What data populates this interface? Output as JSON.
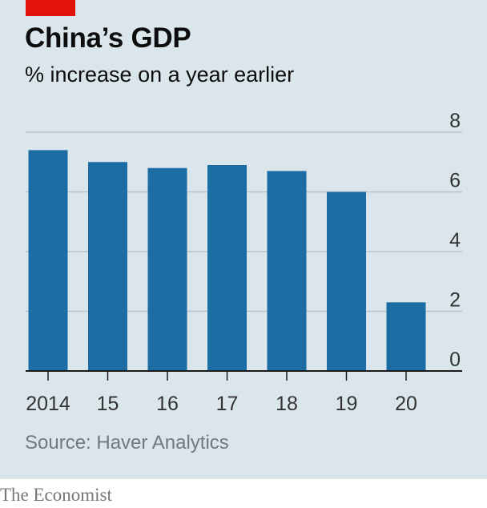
{
  "colors": {
    "background": "#dbe6ec",
    "bar": "#1b6da3",
    "accent": "#e3120b",
    "grid": "#b7c3ca"
  },
  "header": {
    "title": "China’s GDP",
    "subtitle": "% increase on a year earlier"
  },
  "footer": {
    "source": "Source: Haver Analytics",
    "brand": "The Economist"
  },
  "chart_data": {
    "type": "bar",
    "title": "China’s GDP",
    "subtitle": "% increase on a year earlier",
    "xlabel": "",
    "ylabel": "% increase on a year earlier",
    "categories": [
      "2014",
      "15",
      "16",
      "17",
      "18",
      "19",
      "20"
    ],
    "values": [
      7.4,
      7.0,
      6.8,
      6.9,
      6.7,
      6.0,
      2.3
    ],
    "ylim": [
      0,
      8
    ],
    "yticks": [
      "0",
      "2",
      "4",
      "6",
      "8"
    ],
    "grid": true,
    "axis_side": "right"
  }
}
